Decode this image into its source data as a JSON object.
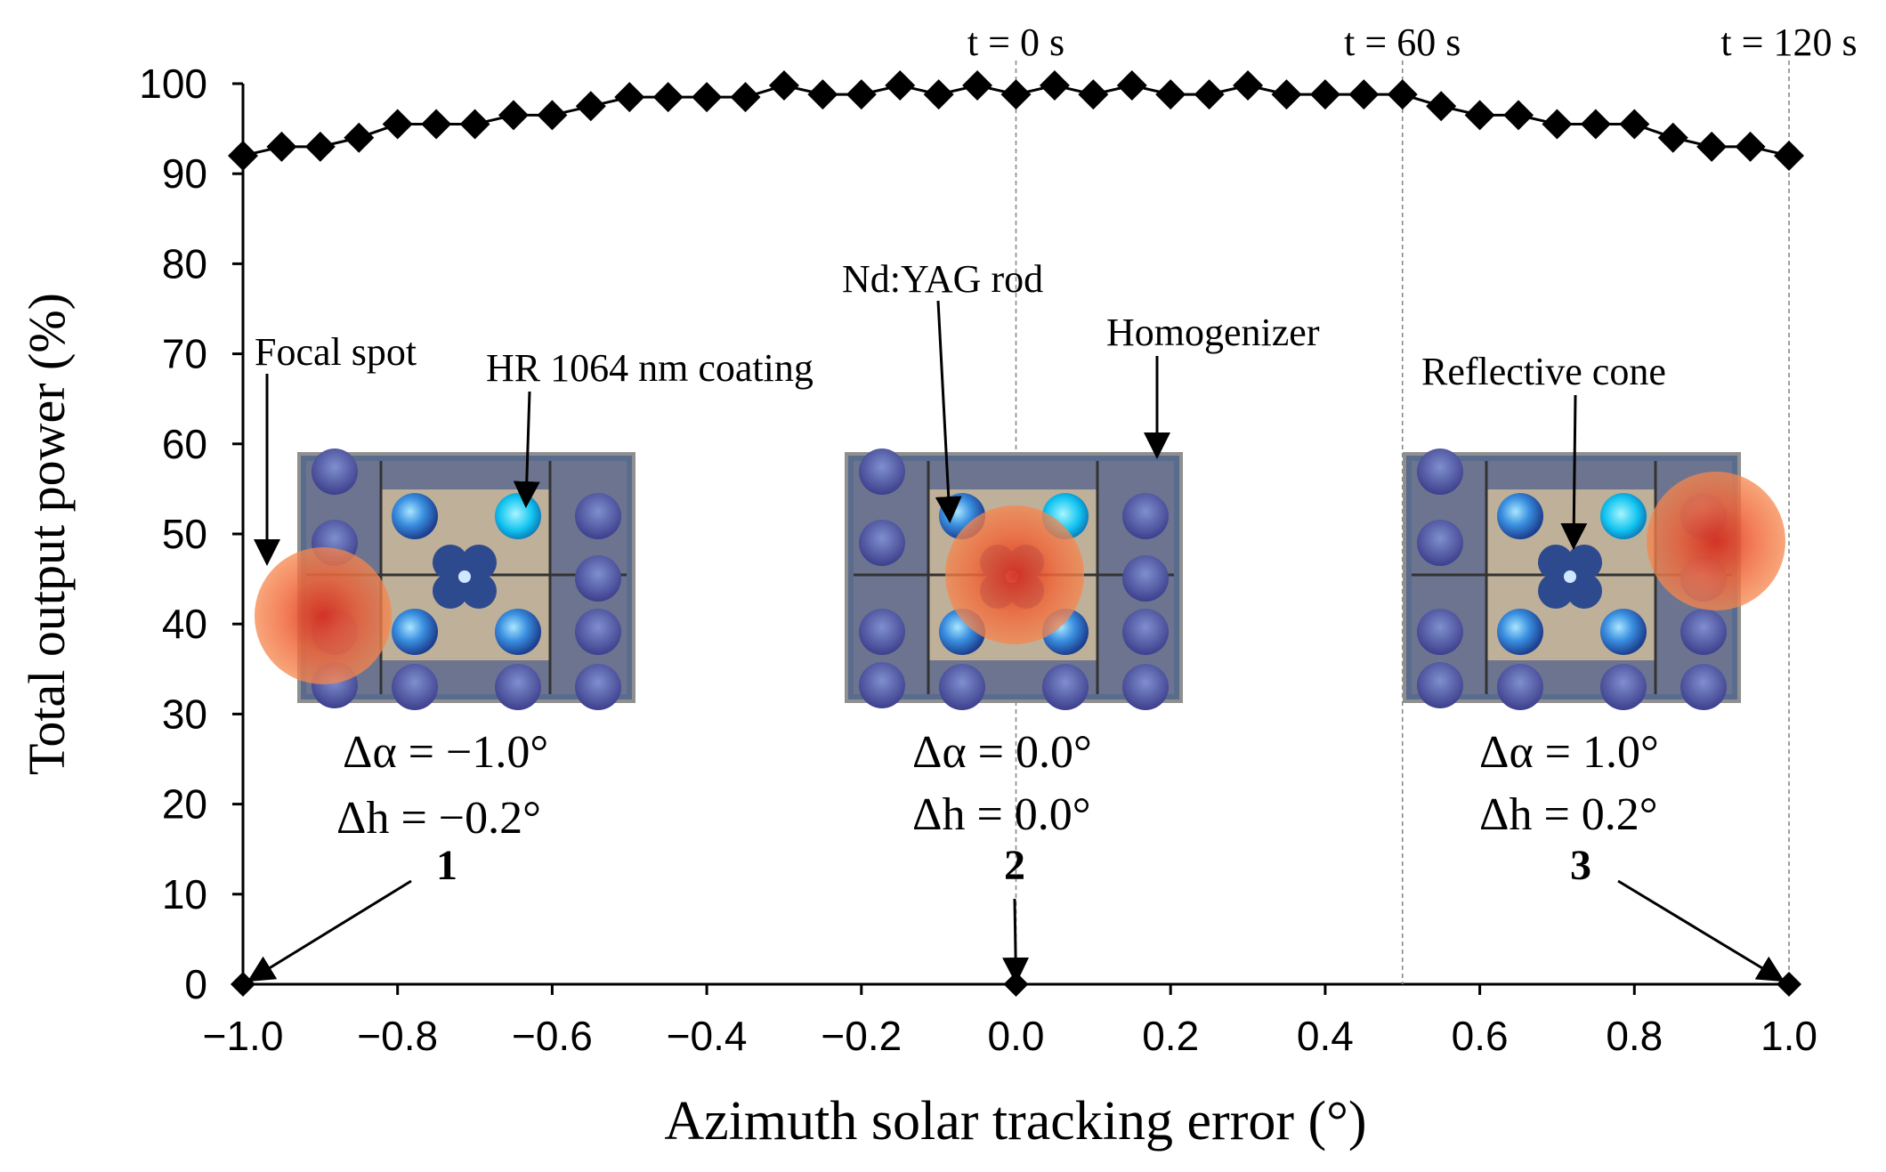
{
  "chart_data": {
    "type": "scatter",
    "xlabel": "Azimuth solar tracking error (°)",
    "ylabel": "Total output power (%)",
    "xlim": [
      -1.0,
      1.0
    ],
    "ylim": [
      0,
      100
    ],
    "xticks": [
      "−1.0",
      "−0.8",
      "−0.6",
      "−0.4",
      "−0.2",
      "0.0",
      "0.2",
      "0.4",
      "0.6",
      "0.8",
      "1.0"
    ],
    "yticks": [
      "0",
      "10",
      "20",
      "30",
      "40",
      "50",
      "60",
      "70",
      "80",
      "90",
      "100"
    ],
    "grid": false,
    "series": [
      {
        "name": "Total output power",
        "marker": "diamond",
        "color": "#000000",
        "x": [
          -1.0,
          -0.95,
          -0.9,
          -0.85,
          -0.8,
          -0.75,
          -0.7,
          -0.65,
          -0.6,
          -0.55,
          -0.5,
          -0.45,
          -0.4,
          -0.35,
          -0.3,
          -0.25,
          -0.2,
          -0.15,
          -0.1,
          -0.05,
          0.0,
          0.05,
          0.1,
          0.15,
          0.2,
          0.25,
          0.3,
          0.35,
          0.4,
          0.45,
          0.5,
          0.55,
          0.6,
          0.65,
          0.7,
          0.75,
          0.8,
          0.85,
          0.9,
          0.95,
          1.0
        ],
        "y": [
          92,
          93,
          93,
          94,
          95.5,
          95.5,
          95.5,
          96.5,
          96.5,
          97.5,
          98.5,
          98.5,
          98.5,
          98.5,
          99.8,
          98.8,
          98.8,
          99.8,
          98.8,
          99.8,
          98.8,
          99.8,
          98.8,
          99.8,
          98.8,
          98.8,
          99.8,
          98.8,
          98.8,
          98.8,
          98.8,
          97.5,
          96.5,
          96.5,
          95.5,
          95.5,
          95.5,
          94,
          93,
          93,
          92
        ]
      }
    ],
    "time_markers": [
      {
        "x": 0.0,
        "label": "t = 0 s"
      },
      {
        "x": 0.5,
        "label": "t = 60 s"
      },
      {
        "x": 1.0,
        "label": "t = 120 s"
      }
    ],
    "zero_points": [
      {
        "x": -1.0,
        "y": 0,
        "label": "1"
      },
      {
        "x": 0.0,
        "y": 0,
        "label": "2"
      },
      {
        "x": 1.0,
        "y": 0,
        "label": "3"
      }
    ],
    "insets": [
      {
        "id": "1",
        "delta_alpha": "Δα = −1.0°",
        "delta_h": "Δh = −0.2°",
        "spot_position": "left"
      },
      {
        "id": "2",
        "delta_alpha": "Δα = 0.0°",
        "delta_h": "Δh = 0.0°",
        "spot_position": "center"
      },
      {
        "id": "3",
        "delta_alpha": "Δα = 1.0°",
        "delta_h": "Δh = 0.2°",
        "spot_position": "right"
      }
    ],
    "annotations": {
      "focal_spot": "Focal spot",
      "hr_coating": "HR 1064 nm coating",
      "rod": "Nd:YAG rod",
      "homogenizer": "Homogenizer",
      "cone": "Reflective cone"
    }
  }
}
